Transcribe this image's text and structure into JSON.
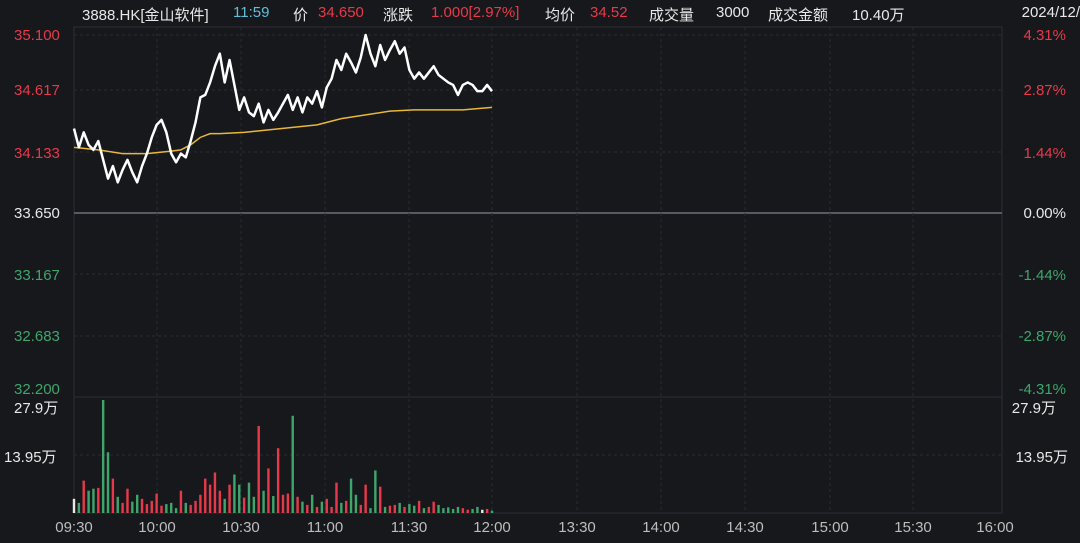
{
  "header": {
    "symbol": "3888.HK[金山软件]",
    "time": "11:59",
    "price_label": "价",
    "price": "34.650",
    "change_label": "涨跌",
    "change": "1.000[2.97%]",
    "avg_label": "均价",
    "avg": "34.52",
    "volume_label": "成交量",
    "volume": "3000",
    "amount_label": "成交金额",
    "amount": "10.40万",
    "date": "2024/12/"
  },
  "colors": {
    "up": "#e8394a",
    "down": "#3ea66b",
    "neutral": "#e8e8e8",
    "price_line": "#ffffff",
    "avg_line": "#e8b73a",
    "time": "#5fc0d8"
  },
  "chart_data": {
    "type": "line",
    "prev_close": 33.65,
    "y_ticks": [
      "35.100",
      "34.617",
      "34.133",
      "33.650",
      "33.167",
      "32.683",
      "32.200"
    ],
    "pct_ticks": [
      "4.31%",
      "2.87%",
      "1.44%",
      "0.00%",
      "-1.44%",
      "-2.87%",
      "-4.31%"
    ],
    "volume_ticks": [
      "27.9万",
      "13.95万"
    ],
    "x_ticks": [
      "09:30",
      "10:00",
      "10:30",
      "11:00",
      "11:30",
      "12:00",
      "13:30",
      "14:00",
      "14:30",
      "15:00",
      "15:30",
      "16:00"
    ],
    "ylim": [
      32.2,
      35.1
    ],
    "volume_max": 279000,
    "price_points": [
      [
        0,
        34.35
      ],
      [
        1,
        34.2
      ],
      [
        2,
        34.32
      ],
      [
        3,
        34.22
      ],
      [
        4,
        34.18
      ],
      [
        5,
        34.25
      ],
      [
        6,
        34.1
      ],
      [
        7,
        33.95
      ],
      [
        8,
        34.05
      ],
      [
        9,
        33.92
      ],
      [
        10,
        34.02
      ],
      [
        11,
        34.1
      ],
      [
        12,
        34.0
      ],
      [
        13,
        33.92
      ],
      [
        14,
        34.05
      ],
      [
        15,
        34.15
      ],
      [
        16,
        34.28
      ],
      [
        17,
        34.38
      ],
      [
        18,
        34.42
      ],
      [
        19,
        34.32
      ],
      [
        20,
        34.15
      ],
      [
        21,
        34.08
      ],
      [
        22,
        34.15
      ],
      [
        23,
        34.12
      ],
      [
        24,
        34.25
      ],
      [
        25,
        34.4
      ],
      [
        26,
        34.6
      ],
      [
        27,
        34.62
      ],
      [
        28,
        34.72
      ],
      [
        29,
        34.85
      ],
      [
        30,
        34.95
      ],
      [
        31,
        34.72
      ],
      [
        32,
        34.9
      ],
      [
        33,
        34.7
      ],
      [
        34,
        34.5
      ],
      [
        35,
        34.6
      ],
      [
        36,
        34.48
      ],
      [
        37,
        34.45
      ],
      [
        38,
        34.55
      ],
      [
        39,
        34.4
      ],
      [
        40,
        34.5
      ],
      [
        41,
        34.42
      ],
      [
        42,
        34.48
      ],
      [
        43,
        34.55
      ],
      [
        44,
        34.62
      ],
      [
        45,
        34.5
      ],
      [
        46,
        34.6
      ],
      [
        47,
        34.48
      ],
      [
        48,
        34.6
      ],
      [
        49,
        34.55
      ],
      [
        50,
        34.65
      ],
      [
        51,
        34.52
      ],
      [
        52,
        34.68
      ],
      [
        53,
        34.75
      ],
      [
        54,
        34.9
      ],
      [
        55,
        34.82
      ],
      [
        56,
        34.95
      ],
      [
        57,
        34.88
      ],
      [
        58,
        34.8
      ],
      [
        59,
        34.92
      ],
      [
        60,
        35.1
      ],
      [
        61,
        34.95
      ],
      [
        62,
        34.85
      ],
      [
        63,
        35.02
      ],
      [
        64,
        34.9
      ],
      [
        65,
        34.98
      ],
      [
        66,
        35.05
      ],
      [
        67,
        34.95
      ],
      [
        68,
        35.0
      ],
      [
        69,
        34.82
      ],
      [
        70,
        34.75
      ],
      [
        71,
        34.8
      ],
      [
        72,
        34.75
      ],
      [
        73,
        34.8
      ],
      [
        74,
        34.85
      ],
      [
        75,
        34.78
      ],
      [
        76,
        34.75
      ],
      [
        77,
        34.72
      ],
      [
        78,
        34.7
      ],
      [
        79,
        34.62
      ],
      [
        80,
        34.7
      ],
      [
        81,
        34.72
      ],
      [
        82,
        34.7
      ],
      [
        83,
        34.65
      ],
      [
        84,
        34.65
      ],
      [
        85,
        34.7
      ],
      [
        86,
        34.65
      ]
    ],
    "avg_points": [
      [
        0,
        34.2
      ],
      [
        5,
        34.18
      ],
      [
        10,
        34.15
      ],
      [
        15,
        34.15
      ],
      [
        20,
        34.17
      ],
      [
        22,
        34.18
      ],
      [
        24,
        34.22
      ],
      [
        26,
        34.28
      ],
      [
        28,
        34.31
      ],
      [
        30,
        34.31
      ],
      [
        35,
        34.32
      ],
      [
        40,
        34.34
      ],
      [
        45,
        34.36
      ],
      [
        50,
        34.38
      ],
      [
        52,
        34.4
      ],
      [
        55,
        34.43
      ],
      [
        60,
        34.46
      ],
      [
        65,
        34.49
      ],
      [
        70,
        34.5
      ],
      [
        75,
        34.5
      ],
      [
        80,
        34.5
      ],
      [
        86,
        34.52
      ]
    ],
    "volume_values": [
      [
        0,
        35000
      ],
      [
        1,
        25000
      ],
      [
        2,
        80000
      ],
      [
        3,
        55000
      ],
      [
        4,
        60000
      ],
      [
        5,
        62000
      ],
      [
        6,
        279000
      ],
      [
        7,
        150000
      ],
      [
        8,
        85000
      ],
      [
        9,
        40000
      ],
      [
        10,
        25000
      ],
      [
        11,
        60000
      ],
      [
        12,
        28000
      ],
      [
        13,
        45000
      ],
      [
        14,
        35000
      ],
      [
        15,
        22000
      ],
      [
        16,
        30000
      ],
      [
        17,
        48000
      ],
      [
        18,
        18000
      ],
      [
        19,
        22000
      ],
      [
        20,
        25000
      ],
      [
        21,
        12000
      ],
      [
        22,
        55000
      ],
      [
        23,
        25000
      ],
      [
        24,
        20000
      ],
      [
        25,
        30000
      ],
      [
        26,
        45000
      ],
      [
        27,
        85000
      ],
      [
        28,
        70000
      ],
      [
        29,
        100000
      ],
      [
        30,
        55000
      ],
      [
        31,
        35000
      ],
      [
        32,
        70000
      ],
      [
        33,
        95000
      ],
      [
        34,
        70000
      ],
      [
        35,
        38000
      ],
      [
        36,
        75000
      ],
      [
        37,
        40000
      ],
      [
        38,
        215000
      ],
      [
        39,
        55000
      ],
      [
        40,
        110000
      ],
      [
        41,
        42000
      ],
      [
        42,
        160000
      ],
      [
        43,
        45000
      ],
      [
        44,
        48000
      ],
      [
        45,
        240000
      ],
      [
        46,
        40000
      ],
      [
        47,
        28000
      ],
      [
        48,
        20000
      ],
      [
        49,
        45000
      ],
      [
        50,
        15000
      ],
      [
        51,
        28000
      ],
      [
        52,
        35000
      ],
      [
        53,
        15000
      ],
      [
        54,
        75000
      ],
      [
        55,
        25000
      ],
      [
        56,
        30000
      ],
      [
        57,
        85000
      ],
      [
        58,
        45000
      ],
      [
        59,
        20000
      ],
      [
        60,
        70000
      ],
      [
        61,
        12000
      ],
      [
        62,
        105000
      ],
      [
        63,
        65000
      ],
      [
        64,
        15000
      ],
      [
        65,
        18000
      ],
      [
        66,
        20000
      ],
      [
        67,
        25000
      ],
      [
        68,
        15000
      ],
      [
        69,
        22000
      ],
      [
        70,
        18000
      ],
      [
        71,
        30000
      ],
      [
        72,
        12000
      ],
      [
        73,
        15000
      ],
      [
        74,
        28000
      ],
      [
        75,
        20000
      ],
      [
        76,
        12000
      ],
      [
        77,
        14000
      ],
      [
        78,
        10000
      ],
      [
        79,
        15000
      ],
      [
        80,
        12000
      ],
      [
        81,
        8000
      ],
      [
        82,
        10000
      ],
      [
        83,
        15000
      ],
      [
        84,
        8000
      ],
      [
        85,
        10000
      ],
      [
        86,
        6000
      ]
    ]
  }
}
